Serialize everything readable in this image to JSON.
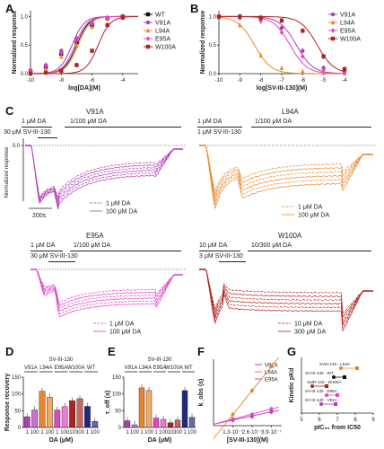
{
  "panels": {
    "A": "A",
    "B": "B",
    "C": "C",
    "D": "D",
    "E": "E",
    "F": "F",
    "G": "G"
  },
  "colors": {
    "WT": "#111111",
    "V91A": "#b23bb5",
    "L94A": "#e8862b",
    "E95A": "#e045c5",
    "W100A": "#b0221e",
    "navy": "#1f2a7a"
  },
  "chart_data": [
    {
      "panel": "A",
      "type": "line",
      "xlabel": "log[DA](M)",
      "ylabel": "Normalized response",
      "x_ticks": [
        "-10",
        "-8",
        "-6",
        "-4"
      ],
      "y_ticks": [
        "0.0",
        "0.5",
        "1.0"
      ],
      "xlim": [
        -10,
        -3
      ],
      "ylim": [
        0,
        1.1
      ],
      "legend": "right",
      "series": [
        {
          "name": "WT",
          "color": "#111111",
          "marker": "square",
          "ec50_log": -7.0,
          "points": [
            [
              -10,
              0.04
            ],
            [
              -9,
              0.12
            ],
            [
              -8,
              0.35
            ],
            [
              -7,
              0.55
            ],
            [
              -6,
              0.85
            ],
            [
              -5,
              0.97
            ],
            [
              -4,
              1.0
            ]
          ]
        },
        {
          "name": "V91A",
          "color": "#b23bb5",
          "marker": "circle",
          "ec50_log": -7.3,
          "points": [
            [
              -10,
              0.06
            ],
            [
              -9,
              0.15
            ],
            [
              -8,
              0.4
            ],
            [
              -7,
              0.62
            ],
            [
              -6,
              0.9
            ],
            [
              -5,
              0.98
            ],
            [
              -4,
              1.0
            ]
          ]
        },
        {
          "name": "L94A",
          "color": "#e8862b",
          "marker": "triangle",
          "ec50_log": -6.9,
          "points": [
            [
              -10,
              0.02
            ],
            [
              -9,
              0.1
            ],
            [
              -8,
              0.3
            ],
            [
              -7,
              0.5
            ],
            [
              -6,
              0.82
            ],
            [
              -5,
              0.96
            ],
            [
              -4,
              1.0
            ]
          ]
        },
        {
          "name": "E95A",
          "color": "#e045c5",
          "marker": "diamond",
          "ec50_log": -7.1,
          "points": [
            [
              -10,
              0.05
            ],
            [
              -9,
              0.14
            ],
            [
              -8,
              0.36
            ],
            [
              -7,
              0.58
            ],
            [
              -6,
              0.87
            ],
            [
              -5,
              0.97
            ],
            [
              -4,
              1.0
            ]
          ]
        },
        {
          "name": "W100A",
          "color": "#b0221e",
          "marker": "square",
          "ec50_log": -5.6,
          "points": [
            [
              -10,
              0.0
            ],
            [
              -9,
              0.02
            ],
            [
              -8,
              0.05
            ],
            [
              -7,
              0.15
            ],
            [
              -6,
              0.4
            ],
            [
              -5,
              0.85
            ],
            [
              -4,
              0.98
            ]
          ]
        }
      ]
    },
    {
      "panel": "B",
      "type": "line",
      "xlabel": "log[SV-III-130](M)",
      "ylabel": "Normalized response",
      "x_ticks": [
        "-10",
        "-9",
        "-8",
        "-7",
        "-6",
        "-5",
        "-4"
      ],
      "y_ticks": [
        "0.0",
        "0.5",
        "1.0"
      ],
      "xlim": [
        -10,
        -4
      ],
      "ylim": [
        0,
        1.1
      ],
      "legend": "top-right",
      "series": [
        {
          "name": "V91A",
          "color": "#b23bb5",
          "marker": "circle",
          "ic50_log": -6.3,
          "points": [
            [
              -10,
              1.0
            ],
            [
              -9,
              0.98
            ],
            [
              -8,
              0.95
            ],
            [
              -7,
              0.8
            ],
            [
              -6,
              0.4
            ],
            [
              -5,
              0.1
            ],
            [
              -4,
              0.03
            ]
          ]
        },
        {
          "name": "L94A",
          "color": "#e8862b",
          "marker": "triangle",
          "ic50_log": -8.3,
          "points": [
            [
              -10,
              0.98
            ],
            [
              -9,
              0.85
            ],
            [
              -8,
              0.32
            ],
            [
              -7,
              0.1
            ],
            [
              -6,
              0.04
            ],
            [
              -5,
              0.02
            ],
            [
              -4,
              0.01
            ]
          ]
        },
        {
          "name": "E95A",
          "color": "#e045c5",
          "marker": "diamond",
          "ic50_log": -6.6,
          "points": [
            [
              -10,
              1.0
            ],
            [
              -9,
              0.97
            ],
            [
              -8,
              0.92
            ],
            [
              -7,
              0.72
            ],
            [
              -6,
              0.3
            ],
            [
              -5,
              0.07
            ],
            [
              -4,
              0.02
            ]
          ]
        },
        {
          "name": "W100A",
          "color": "#b0221e",
          "marker": "square",
          "ic50_log": -5.3,
          "points": [
            [
              -10,
              1.0
            ],
            [
              -9,
              1.0
            ],
            [
              -8,
              0.98
            ],
            [
              -7,
              0.93
            ],
            [
              -6,
              0.75
            ],
            [
              -5,
              0.3
            ],
            [
              -4,
              0.08
            ]
          ]
        }
      ]
    },
    {
      "panel": "D",
      "type": "bar",
      "title": "SV-III-130",
      "groups": [
        "V91A",
        "L94A",
        "E95A",
        "W100A",
        "WT"
      ],
      "xlabel": "DA (μM)",
      "ylabel": "Response recovery",
      "y_ticks": [
        "0",
        "50",
        "100",
        "150"
      ],
      "ylim": [
        0,
        150
      ],
      "categories": [
        "1",
        "100",
        "1",
        "100",
        "1",
        "100",
        "10",
        "300",
        "1",
        "100"
      ],
      "values": [
        32,
        52,
        108,
        90,
        52,
        62,
        80,
        86,
        63,
        18
      ],
      "bar_colors": [
        "#b23bb5",
        "#b23bb5",
        "#e8862b",
        "#e8862b",
        "#e045c5",
        "#e045c5",
        "#b0221e",
        "#b0221e",
        "#1f2a7a",
        "#1f2a7a"
      ]
    },
    {
      "panel": "E",
      "type": "bar",
      "title": "SV-III-130",
      "groups": [
        "V91A",
        "L94A",
        "E95A",
        "W100A",
        "WT"
      ],
      "xlabel": "DA (μM)",
      "ylabel": "τ_off (s)",
      "y_ticks": [
        "0",
        "50",
        "100",
        "150"
      ],
      "ylim": [
        0,
        150
      ],
      "categories": [
        "1",
        "100",
        "1",
        "100",
        "1",
        "100",
        "10",
        "300",
        "1",
        "100"
      ],
      "values": [
        20,
        8,
        118,
        110,
        28,
        24,
        14,
        22,
        110,
        30
      ],
      "bar_colors": [
        "#b23bb5",
        "#b23bb5",
        "#e8862b",
        "#e8862b",
        "#e045c5",
        "#e045c5",
        "#b0221e",
        "#b0221e",
        "#1f2a7a",
        "#1f2a7a"
      ]
    },
    {
      "panel": "F",
      "type": "scatter",
      "xlabel": "[SV-III-130](M)",
      "ylabel": "k_obs (s)",
      "x_ticks": [
        "1.3·10⁻⁷",
        "2.6·10⁻⁷",
        "3.9·10⁻⁷"
      ],
      "legend": "top-right",
      "series": [
        {
          "name": "V91A",
          "color": "#b23bb5",
          "points": [
            [
              1.3e-07,
              0.03
            ],
            [
              2.6e-07,
              0.05
            ],
            [
              3.9e-07,
              0.075
            ]
          ]
        },
        {
          "name": "L94A",
          "color": "#e8862b",
          "points": [
            [
              1.3e-07,
              0.06
            ],
            [
              2.6e-07,
              0.19
            ],
            [
              3.9e-07,
              0.32
            ]
          ]
        },
        {
          "name": "E95A",
          "color": "#e045c5",
          "points": [
            [
              1.3e-07,
              0.035
            ],
            [
              2.6e-07,
              0.06
            ],
            [
              3.9e-07,
              0.09
            ]
          ]
        }
      ]
    },
    {
      "panel": "G",
      "type": "scatter",
      "xlabel": "pIC₅₀ from IC50",
      "ylabel": "Kinetic pKd",
      "x_ticks": [
        "5",
        "6",
        "7",
        "8",
        "9"
      ],
      "annotations": [
        "SVIII-130 - L94A",
        "SV-III-130 - WT",
        "SaIR-132 - W100A",
        "SV-III-130 - E95A",
        "SV-III-130 - V91A"
      ]
    }
  ],
  "traces": {
    "V91A": {
      "title": "V91A",
      "labels": [
        "1 μM DA",
        "1/100 μM DA",
        "30 μM SV-III-130"
      ],
      "ylabel": "Normalized response",
      "scale_label": "200s",
      "zero_tick": "0.0",
      "legend": [
        "1 μM DA",
        "100 μM DA"
      ]
    },
    "L94A": {
      "title": "L94A",
      "labels": [
        "1 μM DA",
        "1/100 μM DA",
        "1 μM SV-III-130"
      ],
      "legend": [
        "1 μM DA",
        "100 μM DA"
      ]
    },
    "E95A": {
      "title": "E95A",
      "labels": [
        "1 μM DA",
        "1/100 μM DA",
        "30 μM SV-III-130"
      ],
      "legend": [
        "1 μM DA",
        "100 μM DA"
      ]
    },
    "W100A": {
      "title": "W100A",
      "labels": [
        "10 μM DA",
        "10/300 μM DA",
        "3 μM SV-III-130"
      ],
      "legend": [
        "10 μM DA",
        "300 μM DA"
      ]
    }
  }
}
